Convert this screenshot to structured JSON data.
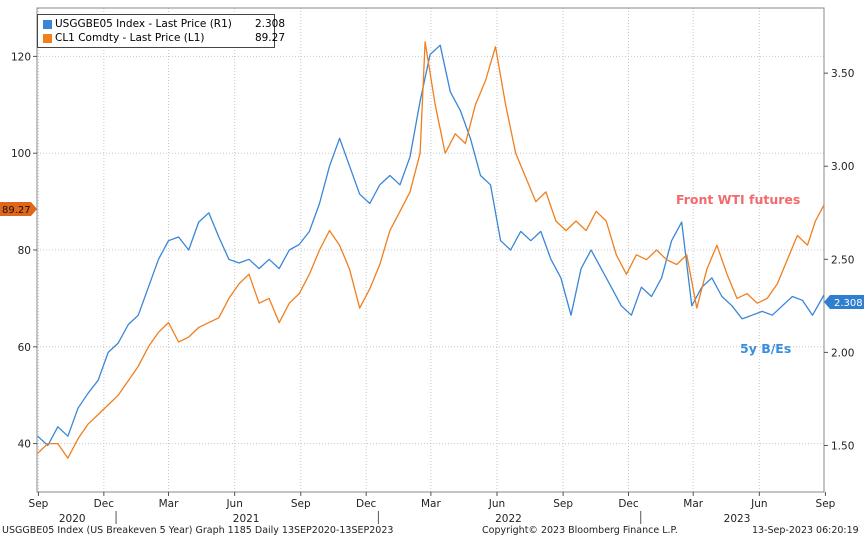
{
  "legend": [
    {
      "label": "USGGBE05 Index - Last Price (R1)",
      "value": "2.308",
      "color": "#3a86d6"
    },
    {
      "label": "CL1 Comdty - Last Price (L1)",
      "value": "89.27",
      "color": "#f07f1e"
    }
  ],
  "annotations": {
    "wti": "Front WTI futures",
    "be": "5y B/Es"
  },
  "last_value_tags": {
    "left": "89.27",
    "right": "2.308"
  },
  "footer": {
    "left": "USGGBE05 Index (US Breakeven 5 Year) Graph 1185  Daily 13SEP2020-13SEP2023",
    "center": "Copyright© 2023 Bloomberg Finance L.P.",
    "right": "13-Sep-2023 06:20:19"
  },
  "chart_data": {
    "type": "line",
    "x_start": "2020-09-13",
    "x_end": "2023-09-13",
    "left_axis": {
      "ylim": [
        30,
        130
      ],
      "ticks": [
        40,
        60,
        80,
        100,
        120
      ]
    },
    "right_axis": {
      "ylim": [
        1.25,
        3.85
      ],
      "ticks": [
        "1.50",
        "2.00",
        "2.50",
        "3.00",
        "3.50"
      ]
    },
    "x_ticks": [
      {
        "label": "Sep",
        "date": "2020-09-15"
      },
      {
        "label": "Dec",
        "date": "2020-12-15"
      },
      {
        "label": "Mar",
        "date": "2021-03-15"
      },
      {
        "label": "Jun",
        "date": "2021-06-15"
      },
      {
        "label": "Sep",
        "date": "2021-09-15"
      },
      {
        "label": "Dec",
        "date": "2021-12-15"
      },
      {
        "label": "Mar",
        "date": "2022-03-15"
      },
      {
        "label": "Jun",
        "date": "2022-06-15"
      },
      {
        "label": "Sep",
        "date": "2022-09-15"
      },
      {
        "label": "Dec",
        "date": "2022-12-15"
      },
      {
        "label": "Mar",
        "date": "2023-03-15"
      },
      {
        "label": "Jun",
        "date": "2023-06-15"
      },
      {
        "label": "Sep",
        "date": "2023-09-15"
      }
    ],
    "year_labels": [
      {
        "label": "2020",
        "date": "2020-11-01"
      },
      {
        "label": "2021",
        "date": "2021-07-01"
      },
      {
        "label": "2022",
        "date": "2022-07-01"
      },
      {
        "label": "2023",
        "date": "2023-05-15"
      }
    ],
    "grid": true,
    "series": [
      {
        "name": "USGGBE05 Index - Last Price (R1)",
        "axis": "right",
        "color": "#3a86d6",
        "points": [
          [
            "2020-09-14",
            1.55
          ],
          [
            "2020-09-28",
            1.5
          ],
          [
            "2020-10-12",
            1.6
          ],
          [
            "2020-10-26",
            1.55
          ],
          [
            "2020-11-09",
            1.7
          ],
          [
            "2020-11-23",
            1.78
          ],
          [
            "2020-12-07",
            1.85
          ],
          [
            "2020-12-21",
            2.0
          ],
          [
            "2021-01-04",
            2.05
          ],
          [
            "2021-01-18",
            2.15
          ],
          [
            "2021-02-01",
            2.2
          ],
          [
            "2021-02-15",
            2.35
          ],
          [
            "2021-03-01",
            2.5
          ],
          [
            "2021-03-15",
            2.6
          ],
          [
            "2021-03-29",
            2.62
          ],
          [
            "2021-04-12",
            2.55
          ],
          [
            "2021-04-26",
            2.7
          ],
          [
            "2021-05-10",
            2.75
          ],
          [
            "2021-05-24",
            2.62
          ],
          [
            "2021-06-07",
            2.5
          ],
          [
            "2021-06-21",
            2.48
          ],
          [
            "2021-07-05",
            2.5
          ],
          [
            "2021-07-19",
            2.45
          ],
          [
            "2021-08-02",
            2.5
          ],
          [
            "2021-08-16",
            2.45
          ],
          [
            "2021-08-30",
            2.55
          ],
          [
            "2021-09-13",
            2.58
          ],
          [
            "2021-09-27",
            2.65
          ],
          [
            "2021-10-11",
            2.8
          ],
          [
            "2021-10-25",
            3.0
          ],
          [
            "2021-11-08",
            3.15
          ],
          [
            "2021-11-22",
            3.0
          ],
          [
            "2021-12-06",
            2.85
          ],
          [
            "2021-12-20",
            2.8
          ],
          [
            "2022-01-03",
            2.9
          ],
          [
            "2022-01-17",
            2.95
          ],
          [
            "2022-01-31",
            2.9
          ],
          [
            "2022-02-14",
            3.05
          ],
          [
            "2022-02-28",
            3.35
          ],
          [
            "2022-03-14",
            3.6
          ],
          [
            "2022-03-28",
            3.65
          ],
          [
            "2022-04-11",
            3.4
          ],
          [
            "2022-04-25",
            3.3
          ],
          [
            "2022-05-09",
            3.15
          ],
          [
            "2022-05-23",
            2.95
          ],
          [
            "2022-06-06",
            2.9
          ],
          [
            "2022-06-20",
            2.6
          ],
          [
            "2022-07-04",
            2.55
          ],
          [
            "2022-07-18",
            2.65
          ],
          [
            "2022-08-01",
            2.6
          ],
          [
            "2022-08-15",
            2.65
          ],
          [
            "2022-08-29",
            2.5
          ],
          [
            "2022-09-12",
            2.4
          ],
          [
            "2022-09-26",
            2.2
          ],
          [
            "2022-10-10",
            2.45
          ],
          [
            "2022-10-24",
            2.55
          ],
          [
            "2022-11-07",
            2.45
          ],
          [
            "2022-11-21",
            2.35
          ],
          [
            "2022-12-05",
            2.25
          ],
          [
            "2022-12-19",
            2.2
          ],
          [
            "2023-01-02",
            2.35
          ],
          [
            "2023-01-16",
            2.3
          ],
          [
            "2023-01-30",
            2.4
          ],
          [
            "2023-02-13",
            2.6
          ],
          [
            "2023-02-27",
            2.7
          ],
          [
            "2023-03-13",
            2.25
          ],
          [
            "2023-03-27",
            2.35
          ],
          [
            "2023-04-10",
            2.4
          ],
          [
            "2023-04-24",
            2.3
          ],
          [
            "2023-05-08",
            2.25
          ],
          [
            "2023-05-22",
            2.18
          ],
          [
            "2023-06-05",
            2.2
          ],
          [
            "2023-06-19",
            2.22
          ],
          [
            "2023-07-03",
            2.2
          ],
          [
            "2023-07-17",
            2.25
          ],
          [
            "2023-07-31",
            2.3
          ],
          [
            "2023-08-14",
            2.28
          ],
          [
            "2023-08-28",
            2.2
          ],
          [
            "2023-09-13",
            2.308
          ]
        ]
      },
      {
        "name": "CL1 Comdty - Last Price (L1)",
        "axis": "left",
        "color": "#f07f1e",
        "points": [
          [
            "2020-09-14",
            38
          ],
          [
            "2020-09-28",
            40
          ],
          [
            "2020-10-12",
            40
          ],
          [
            "2020-10-26",
            37
          ],
          [
            "2020-11-09",
            41
          ],
          [
            "2020-11-23",
            44
          ],
          [
            "2020-12-07",
            46
          ],
          [
            "2020-12-21",
            48
          ],
          [
            "2021-01-04",
            50
          ],
          [
            "2021-01-18",
            53
          ],
          [
            "2021-02-01",
            56
          ],
          [
            "2021-02-15",
            60
          ],
          [
            "2021-03-01",
            63
          ],
          [
            "2021-03-15",
            65
          ],
          [
            "2021-03-29",
            61
          ],
          [
            "2021-04-12",
            62
          ],
          [
            "2021-04-26",
            64
          ],
          [
            "2021-05-10",
            65
          ],
          [
            "2021-05-24",
            66
          ],
          [
            "2021-06-07",
            70
          ],
          [
            "2021-06-21",
            73
          ],
          [
            "2021-07-05",
            75
          ],
          [
            "2021-07-19",
            69
          ],
          [
            "2021-08-02",
            70
          ],
          [
            "2021-08-16",
            65
          ],
          [
            "2021-08-30",
            69
          ],
          [
            "2021-09-13",
            71
          ],
          [
            "2021-09-27",
            75
          ],
          [
            "2021-10-11",
            80
          ],
          [
            "2021-10-25",
            84
          ],
          [
            "2021-11-08",
            81
          ],
          [
            "2021-11-22",
            76
          ],
          [
            "2021-12-06",
            68
          ],
          [
            "2021-12-20",
            72
          ],
          [
            "2022-01-03",
            77
          ],
          [
            "2022-01-17",
            84
          ],
          [
            "2022-01-31",
            88
          ],
          [
            "2022-02-14",
            92
          ],
          [
            "2022-02-28",
            100
          ],
          [
            "2022-03-07",
            123
          ],
          [
            "2022-03-21",
            110
          ],
          [
            "2022-04-04",
            100
          ],
          [
            "2022-04-18",
            104
          ],
          [
            "2022-05-02",
            102
          ],
          [
            "2022-05-16",
            110
          ],
          [
            "2022-05-30",
            115
          ],
          [
            "2022-06-13",
            122
          ],
          [
            "2022-06-27",
            110
          ],
          [
            "2022-07-11",
            100
          ],
          [
            "2022-07-25",
            95
          ],
          [
            "2022-08-08",
            90
          ],
          [
            "2022-08-22",
            92
          ],
          [
            "2022-09-05",
            86
          ],
          [
            "2022-09-19",
            84
          ],
          [
            "2022-10-03",
            86
          ],
          [
            "2022-10-17",
            84
          ],
          [
            "2022-10-31",
            88
          ],
          [
            "2022-11-14",
            86
          ],
          [
            "2022-11-28",
            79
          ],
          [
            "2022-12-12",
            75
          ],
          [
            "2022-12-26",
            79
          ],
          [
            "2023-01-09",
            78
          ],
          [
            "2023-01-23",
            80
          ],
          [
            "2023-02-06",
            78
          ],
          [
            "2023-02-20",
            77
          ],
          [
            "2023-03-06",
            79
          ],
          [
            "2023-03-20",
            68
          ],
          [
            "2023-04-03",
            76
          ],
          [
            "2023-04-17",
            81
          ],
          [
            "2023-05-01",
            75
          ],
          [
            "2023-05-15",
            70
          ],
          [
            "2023-05-29",
            71
          ],
          [
            "2023-06-12",
            69
          ],
          [
            "2023-06-26",
            70
          ],
          [
            "2023-07-10",
            73
          ],
          [
            "2023-07-24",
            78
          ],
          [
            "2023-08-07",
            83
          ],
          [
            "2023-08-21",
            81
          ],
          [
            "2023-09-01",
            86
          ],
          [
            "2023-09-13",
            89.27
          ]
        ]
      }
    ]
  }
}
